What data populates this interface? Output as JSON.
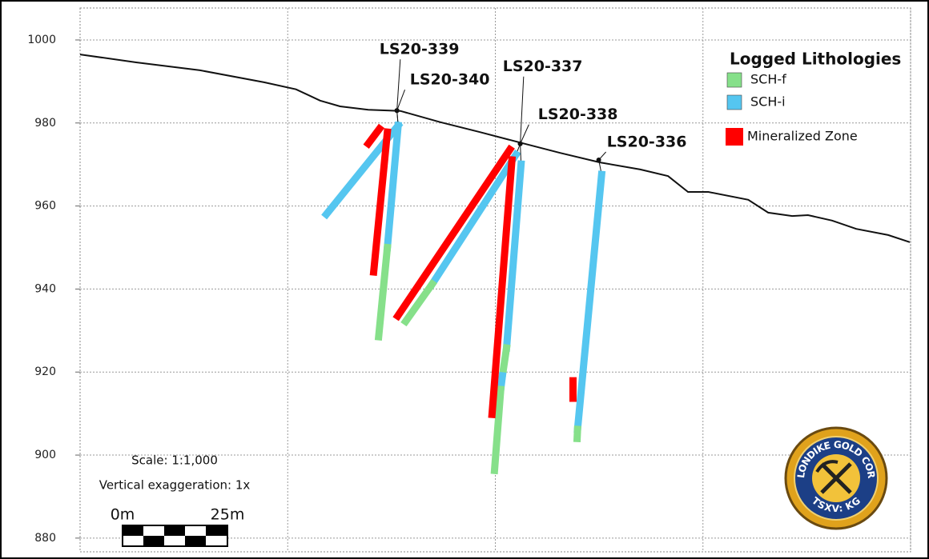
{
  "chart_data": {
    "type": "section",
    "ylim": [
      876.7,
      1007.7
    ],
    "yticks": [
      880,
      900,
      920,
      940,
      960,
      980,
      1000
    ],
    "xlim": [
      0,
      200
    ],
    "xticks": [
      0,
      50,
      100,
      150,
      200
    ],
    "grid": true,
    "legend": {
      "title": "Logged Lithologies",
      "items": [
        {
          "name": "SCH-f",
          "color": "#86e08a"
        },
        {
          "name": "SCH-i",
          "color": "#55c6f0"
        },
        {
          "name": "Mineralized Zone",
          "color": "#ff0000"
        }
      ]
    },
    "terrain": {
      "x": [
        0,
        13.5,
        28.9,
        44.3,
        52,
        57.8,
        62.6,
        69.4,
        77.1,
        86.7,
        96.3,
        105.9,
        115.6,
        125.2,
        134.9,
        141.6,
        146.4,
        151.3,
        160.9,
        165.7,
        171.5,
        175.3,
        181.1,
        186.9,
        194.6,
        199.8
      ],
      "y": [
        996.5,
        994.6,
        992.7,
        989.8,
        988.1,
        985.4,
        984,
        983.2,
        982.9,
        980.2,
        977.8,
        975.3,
        972.8,
        970.5,
        968.8,
        967.2,
        963.4,
        963.4,
        961.5,
        958.4,
        957.6,
        957.8,
        956.5,
        954.5,
        953,
        951.3
      ]
    },
    "holes": [
      {
        "name": "LS20-339",
        "collar": [
          76.3,
          983.0
        ],
        "intervals": [
          {
            "lithology": "SCH-i",
            "x": [
              76.6,
              59.3
            ],
            "y": [
              979.4,
              958.0
            ]
          },
          {
            "lithology": "Mineralized Zone",
            "x": [
              72.1,
              69.4
            ],
            "y": [
              978.6,
              975.0
            ]
          }
        ]
      },
      {
        "name": "LS20-340",
        "collar": [
          76.3,
          983.0
        ],
        "intervals": [
          {
            "lithology": "SCH-i",
            "x": [
              76.6,
              74.0
            ],
            "y": [
              979.4,
              950.0
            ]
          },
          {
            "lithology": "SCH-f",
            "x": [
              74.0,
              71.9
            ],
            "y": [
              950.0,
              928.5
            ]
          },
          {
            "lithology": "Mineralized Zone",
            "x": [
              74.0,
              70.7
            ],
            "y": [
              977.8,
              944.1
            ]
          }
        ]
      },
      {
        "name": "LS20-337",
        "collar": [
          106.0,
          975.0
        ],
        "intervals": [
          {
            "lithology": "SCH-i",
            "x": [
              105.0,
              84.8
            ],
            "y": [
              972.4,
              941.2
            ]
          },
          {
            "lithology": "SCH-f",
            "x": [
              84.8,
              78.4
            ],
            "y": [
              941.2,
              932.2
            ]
          },
          {
            "lithology": "Mineralized Zone",
            "x": [
              103.5,
              76.5
            ],
            "y": [
              973.6,
              933.5
            ]
          }
        ]
      },
      {
        "name": "LS20-338",
        "collar": [
          106.0,
          975.0
        ],
        "intervals": [
          {
            "lithology": "SCH-i",
            "x": [
              106.2,
              102.7
            ],
            "y": [
              970.1,
              925.8
            ]
          },
          {
            "lithology": "SCH-f",
            "x": [
              102.7,
              101.7
            ],
            "y": [
              925.8,
              919.1
            ]
          },
          {
            "lithology": "SCH-i",
            "x": [
              101.7,
              101.3
            ],
            "y": [
              919.1,
              915.8
            ]
          },
          {
            "lithology": "SCH-f",
            "x": [
              101.3,
              99.8
            ],
            "y": [
              915.8,
              896.3
            ]
          },
          {
            "lithology": "Mineralized Zone",
            "x": [
              104.0,
              99.2
            ],
            "y": [
              971.1,
              909.8
            ]
          }
        ]
      },
      {
        "name": "LS20-336",
        "collar": [
          124.9,
          971.1
        ],
        "intervals": [
          {
            "lithology": "SCH-i",
            "x": [
              125.6,
              119.8
            ],
            "y": [
              967.6,
              906.2
            ]
          },
          {
            "lithology": "SCH-f",
            "x": [
              119.8,
              119.7
            ],
            "y": [
              906.2,
              904.0
            ]
          },
          {
            "lithology": "Mineralized Zone",
            "x": [
              118.7,
              118.7
            ],
            "y": [
              917.9,
              913.7
            ]
          }
        ]
      }
    ],
    "scale_text": "Scale: 1:1,000",
    "exaggeration_text": "Vertical exaggeration: 1x",
    "scale_bar_labels": [
      "0m",
      "25m"
    ],
    "logo": {
      "name": "KLONDIKE GOLD CORP",
      "ticker": "TSXV: KG"
    }
  }
}
